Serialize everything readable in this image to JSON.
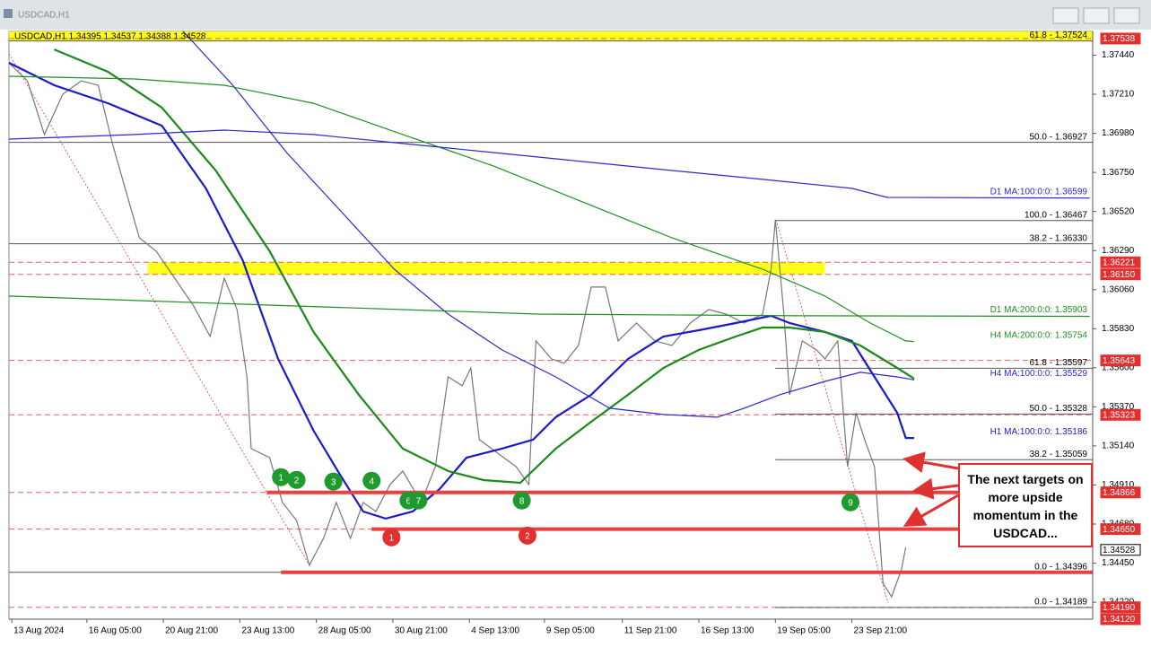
{
  "window_title": "USDCAD,H1",
  "chart_data": {
    "type": "line",
    "info": "USDCAD,H1  1.34395 1.34537 1.34388 1.34528",
    "xlim": [
      0,
      765
    ],
    "ylim": [
      1.3412,
      1.3758
    ],
    "xticks": [
      {
        "value": 2,
        "label": "13 Aug 2024"
      },
      {
        "value": 55,
        "label": "16 Aug 05:00"
      },
      {
        "value": 109,
        "label": "20 Aug 21:00"
      },
      {
        "value": 163,
        "label": "23 Aug 13:00"
      },
      {
        "value": 217,
        "label": "28 Aug 05:00"
      },
      {
        "value": 271,
        "label": "30 Aug 21:00"
      },
      {
        "value": 325,
        "label": "4 Sep 13:00"
      },
      {
        "value": 378,
        "label": "9 Sep 05:00"
      },
      {
        "value": 433,
        "label": "11 Sep 21:00"
      },
      {
        "value": 487,
        "label": "16 Sep 13:00"
      },
      {
        "value": 541,
        "label": "19 Sep 05:00"
      },
      {
        "value": 595,
        "label": "23 Sep 21:00"
      }
    ],
    "yticks": [
      {
        "value": 1.3744,
        "label": "1.37440"
      },
      {
        "value": 1.3721,
        "label": "1.37210"
      },
      {
        "value": 1.3698,
        "label": "1.36980"
      },
      {
        "value": 1.3675,
        "label": "1.36750"
      },
      {
        "value": 1.3652,
        "label": "1.36520"
      },
      {
        "value": 1.3629,
        "label": "1.36290"
      },
      {
        "value": 1.3606,
        "label": "1.36060"
      },
      {
        "value": 1.3583,
        "label": "1.35830"
      },
      {
        "value": 1.356,
        "label": "1.35600"
      },
      {
        "value": 1.3537,
        "label": "1.35370"
      },
      {
        "value": 1.3514,
        "label": "1.35140"
      },
      {
        "value": 1.3491,
        "label": "1.34910"
      },
      {
        "value": 1.3468,
        "label": "1.34680"
      },
      {
        "value": 1.3445,
        "label": "1.34450"
      },
      {
        "value": 1.3422,
        "label": "1.34220"
      }
    ],
    "zones": [
      {
        "low": 1.37524,
        "high": 1.3758,
        "from": 0,
        "to": 765,
        "color": "#ffff00"
      },
      {
        "low": 1.3615,
        "high": 1.36221,
        "from": 98,
        "to": 576,
        "color": "#ffff00"
      }
    ],
    "series": [
      {
        "color": "#777777",
        "width": 1.2,
        "x": [
          0,
          13,
          25,
          38,
          51,
          63,
          73,
          82,
          92,
          104,
          117,
          130,
          142,
          152,
          161,
          168,
          171,
          184,
          193,
          203,
          212,
          222,
          231,
          241,
          250,
          259,
          269,
          278,
          291,
          301,
          310,
          320,
          326,
          332,
          345,
          358,
          367,
          372,
          383,
          392,
          402,
          411,
          421,
          430,
          443,
          456,
          468,
          481,
          494,
          506,
          519,
          532,
          538,
          541,
          547,
          551,
          560,
          570,
          576,
          585,
          592,
          598,
          604,
          611,
          617,
          623,
          630,
          633
        ],
        "values": [
          1.37395,
          1.37289,
          1.36973,
          1.3721,
          1.37289,
          1.37263,
          1.3692,
          1.36656,
          1.36365,
          1.36286,
          1.36127,
          1.35969,
          1.35784,
          1.36127,
          1.35943,
          1.35546,
          1.35124,
          1.35071,
          1.34807,
          1.34701,
          1.34437,
          1.34596,
          1.34807,
          1.34596,
          1.34807,
          1.34754,
          1.34913,
          1.34992,
          1.34807,
          1.35018,
          1.35546,
          1.35494,
          1.35599,
          1.35177,
          1.35097,
          1.35018,
          1.34913,
          1.35758,
          1.35652,
          1.35626,
          1.35731,
          1.36075,
          1.36075,
          1.35758,
          1.35863,
          1.35758,
          1.35731,
          1.35863,
          1.35943,
          1.35916,
          1.35863,
          1.35916,
          1.3618,
          1.36471,
          1.35916,
          1.35441,
          1.35758,
          1.35705,
          1.35652,
          1.35758,
          1.35018,
          1.35335,
          1.35177,
          1.35018,
          1.34332,
          1.34252,
          1.34411,
          1.34543
        ]
      },
      {
        "name": "H1 MA:100:0:0: 1.35186",
        "color": "#1a1acc",
        "width": 2.2,
        "x": [
          0,
          32,
          70,
          108,
          139,
          165,
          190,
          215,
          234,
          250,
          266,
          285,
          304,
          323,
          348,
          370,
          386,
          411,
          437,
          462,
          487,
          513,
          538,
          551,
          576,
          595,
          611,
          627,
          633,
          639
        ],
        "values": [
          1.37395,
          1.37263,
          1.37157,
          1.37025,
          1.36656,
          1.36233,
          1.35652,
          1.3523,
          1.34966,
          1.34754,
          1.34712,
          1.34754,
          1.34886,
          1.35071,
          1.35124,
          1.35177,
          1.35309,
          1.35441,
          1.35652,
          1.35784,
          1.35821,
          1.35863,
          1.35906,
          1.35863,
          1.35811,
          1.35758,
          1.35546,
          1.35335,
          1.35187,
          1.35186
        ]
      },
      {
        "color": "#1a8a1a",
        "width": 2.2,
        "x": [
          32,
          70,
          108,
          146,
          184,
          215,
          247,
          278,
          310,
          335,
          361,
          386,
          411,
          437,
          462,
          487,
          513,
          532,
          551,
          576,
          601,
          627,
          639
        ],
        "values": [
          1.37474,
          1.37342,
          1.37131,
          1.36761,
          1.36286,
          1.35811,
          1.35441,
          1.35124,
          1.34992,
          1.34939,
          1.34923,
          1.35124,
          1.35282,
          1.35441,
          1.35599,
          1.35705,
          1.35784,
          1.35837,
          1.35837,
          1.35811,
          1.35731,
          1.35599,
          1.35536
        ]
      },
      {
        "name": "H4 MA:100:0:0: 1.35529",
        "color": "#2a2ad0",
        "width": 1.2,
        "x": [
          123,
          158,
          196,
          234,
          272,
          310,
          348,
          386,
          424,
          462,
          500,
          519,
          544,
          576,
          601,
          627,
          639
        ],
        "values": [
          1.3758,
          1.37263,
          1.36867,
          1.36524,
          1.3618,
          1.35916,
          1.35705,
          1.35546,
          1.35362,
          1.35325,
          1.35309,
          1.35362,
          1.35441,
          1.3552,
          1.35573,
          1.35546,
          1.35529
        ]
      },
      {
        "name": "H4 MA:200:0:0: 1.35754",
        "color": "#1f8f1f",
        "width": 1.2,
        "x": [
          0,
          89,
          152,
          215,
          278,
          342,
          405,
          468,
          532,
          576,
          608,
          633,
          639
        ],
        "values": [
          1.37316,
          1.373,
          1.37263,
          1.37157,
          1.36973,
          1.36788,
          1.36576,
          1.36365,
          1.3618,
          1.36022,
          1.35863,
          1.35758,
          1.35754
        ]
      },
      {
        "name": "D1 MA:100:0:0: 1.36599",
        "color": "#2a2ad0",
        "width": 1.2,
        "x": [
          0,
          89,
          152,
          215,
          278,
          342,
          405,
          468,
          532,
          595,
          620,
          763
        ],
        "values": [
          1.36946,
          1.36973,
          1.36999,
          1.36973,
          1.3692,
          1.36867,
          1.36814,
          1.36761,
          1.36709,
          1.36656,
          1.36603,
          1.36599
        ]
      },
      {
        "name": "D1 MA:200:0:0: 1.35903",
        "color": "#1f8f1f",
        "width": 1.2,
        "x": [
          0,
          184,
          373,
          563,
          763
        ],
        "values": [
          1.36022,
          1.35969,
          1.35916,
          1.35906,
          1.35903
        ]
      }
    ],
    "levels": [
      {
        "label": "61.8 - 1.37524",
        "value": 1.37524,
        "from": 0
      },
      {
        "label": "50.0 - 1.36927",
        "value": 1.36927,
        "from": 0
      },
      {
        "label": "100.0 - 1.36467",
        "value": 1.36467,
        "from": 541
      },
      {
        "label": "38.2 - 1.36330",
        "value": 1.3633,
        "from": 0
      },
      {
        "label": "61.8 - 1.35597",
        "value": 1.35597,
        "from": 541
      },
      {
        "label": "50.0 - 1.35328",
        "value": 1.35328,
        "from": 541
      },
      {
        "label": "38.2 - 1.35059",
        "value": 1.35059,
        "from": 541
      },
      {
        "label": "0.0 - 1.34396",
        "value": 1.34396,
        "from": 0
      },
      {
        "label": "0.0 - 1.34189",
        "value": 1.34189,
        "from": 541
      }
    ],
    "support_lines": [
      {
        "value": 1.34866,
        "from": 182
      },
      {
        "value": 1.3465,
        "from": 256
      },
      {
        "value": 1.34396,
        "from": 192
      }
    ],
    "price_tags": [
      1.37538,
      1.36221,
      {
        "value": 1.3615,
        "label": "1.36150"
      },
      1.35643,
      1.35323,
      1.34866,
      {
        "value": 1.3465,
        "label": "1.34650"
      },
      {
        "value": 1.3419,
        "label": "1.34190"
      },
      {
        "value": 1.3412,
        "label": "1.34120"
      }
    ],
    "current_price": 1.34528,
    "markers": [
      {
        "label": "1",
        "x": 192,
        "y": 1.34956,
        "color": "#1e9a2e"
      },
      {
        "label": "2",
        "x": 203,
        "y": 1.3494,
        "color": "#1e9a2e"
      },
      {
        "label": "3",
        "x": 229,
        "y": 1.3493,
        "color": "#1e9a2e"
      },
      {
        "label": "4",
        "x": 256,
        "y": 1.34935,
        "color": "#1e9a2e"
      },
      {
        "label": "6",
        "x": 282,
        "y": 1.34819,
        "color": "#1e9a2e"
      },
      {
        "label": "7",
        "x": 289,
        "y": 1.34819,
        "color": "#1e9a2e"
      },
      {
        "label": "8",
        "x": 362,
        "y": 1.34819,
        "color": "#1e9a2e"
      },
      {
        "label": "9",
        "x": 594,
        "y": 1.34808,
        "color": "#1e9a2e"
      },
      {
        "label": "1",
        "x": 270,
        "y": 1.34602,
        "color": "#e03030"
      },
      {
        "label": "2",
        "x": 366,
        "y": 1.34612,
        "color": "#e03030"
      }
    ],
    "annotation": "The next targets on more upside momentum in the USDCAD..."
  }
}
